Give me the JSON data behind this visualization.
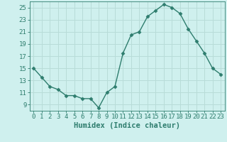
{
  "x": [
    0,
    1,
    2,
    3,
    4,
    5,
    6,
    7,
    8,
    9,
    10,
    11,
    12,
    13,
    14,
    15,
    16,
    17,
    18,
    19,
    20,
    21,
    22,
    23
  ],
  "y": [
    15,
    13.5,
    12,
    11.5,
    10.5,
    10.5,
    10,
    10,
    8.5,
    11,
    12,
    17.5,
    20.5,
    21,
    23.5,
    24.5,
    25.5,
    25,
    24,
    21.5,
    19.5,
    17.5,
    15,
    14
  ],
  "line_color": "#2e7d6e",
  "marker": "D",
  "marker_size": 2.5,
  "background_color": "#cff0ee",
  "grid_color": "#b8dcd8",
  "xlabel": "Humidex (Indice chaleur)",
  "xlim": [
    -0.5,
    23.5
  ],
  "ylim": [
    8,
    26
  ],
  "yticks": [
    9,
    11,
    13,
    15,
    17,
    19,
    21,
    23,
    25
  ],
  "xticks": [
    0,
    1,
    2,
    3,
    4,
    5,
    6,
    7,
    8,
    9,
    10,
    11,
    12,
    13,
    14,
    15,
    16,
    17,
    18,
    19,
    20,
    21,
    22,
    23
  ],
  "tick_color": "#2e7d6e",
  "label_color": "#2e7d6e",
  "font_size": 6.5,
  "xlabel_fontsize": 7.5
}
